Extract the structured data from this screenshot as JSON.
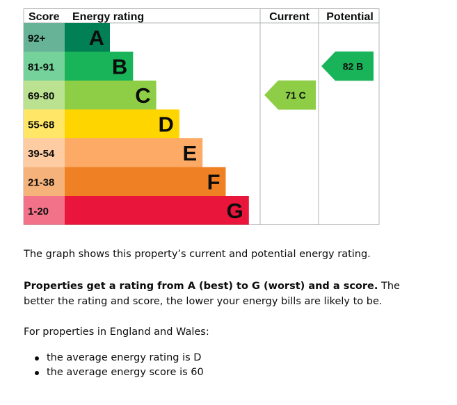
{
  "chart_data": {
    "type": "bar",
    "title": "",
    "headers": {
      "score": "Score",
      "rating": "Energy rating",
      "current": "Current",
      "potential": "Potential"
    },
    "bands": [
      {
        "letter": "A",
        "range": "92+",
        "bar_color": "#008054",
        "range_bg": "#66b398"
      },
      {
        "letter": "B",
        "range": "81-91",
        "bar_color": "#19b459",
        "range_bg": "#75d29b"
      },
      {
        "letter": "C",
        "range": "69-80",
        "bar_color": "#8dce46",
        "range_bg": "#bbe290"
      },
      {
        "letter": "D",
        "range": "55-68",
        "bar_color": "#ffd500",
        "range_bg": "#ffe666"
      },
      {
        "letter": "E",
        "range": "39-54",
        "bar_color": "#fcaa65",
        "range_bg": "#fdcca3"
      },
      {
        "letter": "F",
        "range": "21-38",
        "bar_color": "#ef8023",
        "range_bg": "#f5b37b"
      },
      {
        "letter": "G",
        "range": "1-20",
        "bar_color": "#e9153b",
        "range_bg": "#f27389"
      }
    ],
    "current": {
      "score": 71,
      "band": "C",
      "label": "71 C",
      "color": "#8dce46"
    },
    "potential": {
      "score": 82,
      "band": "B",
      "label": "82 B",
      "color": "#19b459"
    }
  },
  "content": {
    "para_graph": "The graph shows this property’s current and potential energy rating.",
    "para_ratings_bold": "Properties get a rating from A (best) to G (worst) and a score.",
    "para_ratings_rest": " The better the rating and score, the lower your energy bills are likely to be.",
    "para_region": "For properties in England and Wales:",
    "averages": [
      "the average energy rating is D",
      "the average energy score is 60"
    ]
  }
}
